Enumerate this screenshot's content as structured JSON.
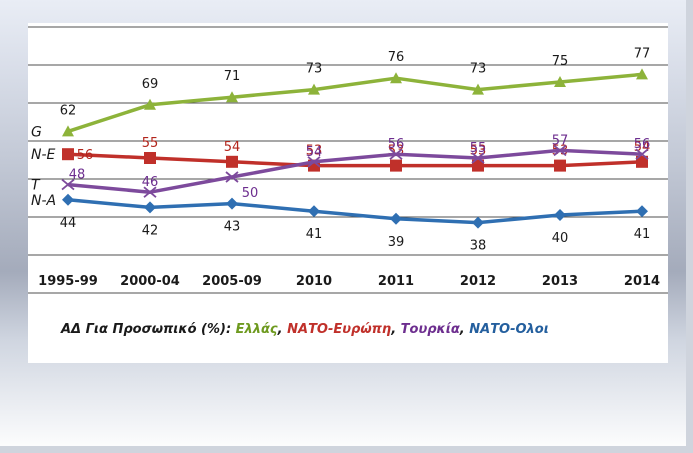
{
  "caption": {
    "prefix": "ΑΔ Για Προσωπικό (%): ",
    "greece": "Ελλάς",
    "nato_europe": "ΝΑΤΟ-Ευρώπη",
    "turkey": "Τουρκία",
    "nato_all": "ΝΑΤΟ-Ολοι",
    "sep": ", "
  },
  "chart_data": {
    "type": "line",
    "title": "",
    "xlabel": "",
    "ylabel": "",
    "categories": [
      "1995-99",
      "2000-04",
      "2005-09",
      "2010",
      "2011",
      "2012",
      "2013",
      "2014"
    ],
    "ylim": [
      30,
      80
    ],
    "grid": true,
    "series": [
      {
        "name": "G",
        "values": [
          62,
          69,
          71,
          73,
          76,
          73,
          75,
          77
        ],
        "color": "#8db33a",
        "marker": "triangle",
        "label_color": "#1a1a1a"
      },
      {
        "name": "N-E",
        "values": [
          56,
          55,
          54,
          53,
          53,
          53,
          53,
          54
        ],
        "color": "#c0302a",
        "marker": "square",
        "label_color": "#b2251c"
      },
      {
        "name": "T",
        "values": [
          48,
          46,
          50,
          54,
          56,
          55,
          57,
          56
        ],
        "color": "#7d4a9c",
        "marker": "x",
        "label_color": "#6d2e8f"
      },
      {
        "name": "N-A",
        "values": [
          44,
          42,
          43,
          41,
          39,
          38,
          40,
          41
        ],
        "color": "#2f6fb2",
        "marker": "diamond",
        "label_color": "#1a1a1a"
      }
    ]
  }
}
